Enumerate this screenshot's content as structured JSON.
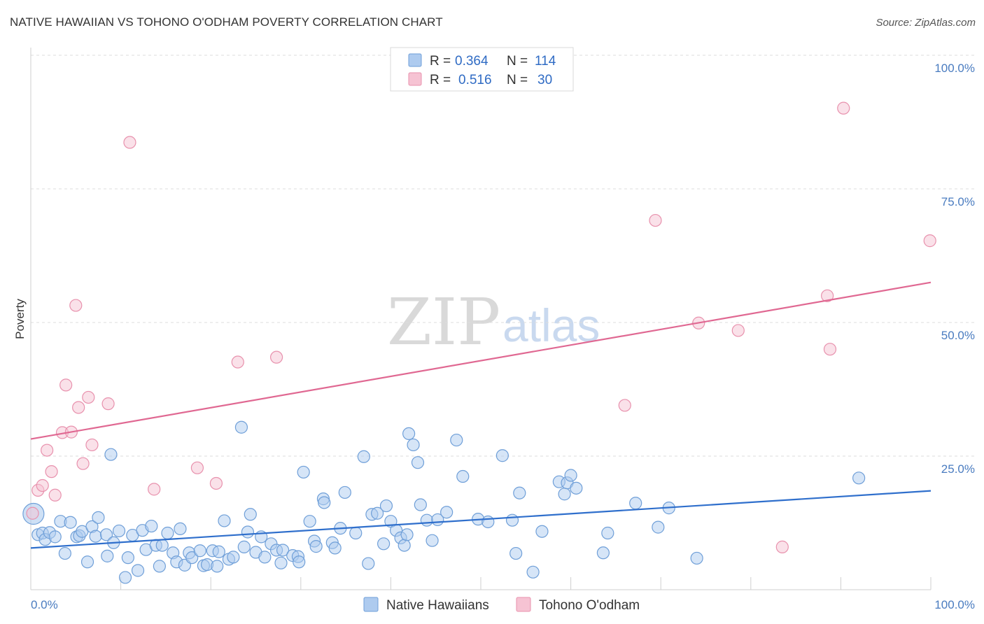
{
  "title": "NATIVE HAWAIIAN VS TOHONO O'ODHAM POVERTY CORRELATION CHART",
  "source": "Source: ZipAtlas.com",
  "watermark": {
    "zip": "ZIP",
    "atlas": "atlas"
  },
  "colors": {
    "blue_fill": "#aecbef",
    "blue_stroke": "#6f9fd8",
    "blue_line": "#2f6fcc",
    "pink_fill": "#f6c3d3",
    "pink_stroke": "#e891ad",
    "pink_line": "#e06892",
    "grid": "#dddddd",
    "tick_text": "#4a7cc0"
  },
  "legend": {
    "rows": [
      {
        "r_label": "R =",
        "r_value": "0.364",
        "n_label": "N =",
        "n_value": "114"
      },
      {
        "r_label": "R =",
        "r_value": "0.516",
        "n_label": "N =",
        "n_value": "30"
      }
    ]
  },
  "chart_data": {
    "type": "scatter",
    "title": "NATIVE HAWAIIAN VS TOHONO O'ODHAM POVERTY CORRELATION CHART",
    "xlabel": "",
    "ylabel": "Poverty",
    "xlim": [
      0,
      100
    ],
    "ylim": [
      0,
      100
    ],
    "x_tick_labels": [
      "0.0%",
      "100.0%"
    ],
    "y_ticks": [
      25,
      50,
      75,
      100
    ],
    "y_tick_labels": [
      "25.0%",
      "50.0%",
      "75.0%",
      "100.0%"
    ],
    "grid": true,
    "legend_position": "top-center",
    "series": [
      {
        "name": "Native Hawaiians",
        "color": "#aecbef",
        "trend": {
          "x": [
            0,
            100
          ],
          "y": [
            7.8,
            18.5
          ]
        },
        "points": [
          [
            0.3,
            14.2
          ],
          [
            0.8,
            10.3
          ],
          [
            1.3,
            10.6
          ],
          [
            1.6,
            9.4
          ],
          [
            2.1,
            10.7
          ],
          [
            2.7,
            9.9
          ],
          [
            3.3,
            12.8
          ],
          [
            3.8,
            6.8
          ],
          [
            4.4,
            12.6
          ],
          [
            5.1,
            9.9
          ],
          [
            5.4,
            10.1
          ],
          [
            5.7,
            10.9
          ],
          [
            6.3,
            5.2
          ],
          [
            6.8,
            11.8
          ],
          [
            7.2,
            10.0
          ],
          [
            7.5,
            13.5
          ],
          [
            8.4,
            10.3
          ],
          [
            8.5,
            6.3
          ],
          [
            8.9,
            25.3
          ],
          [
            9.2,
            8.8
          ],
          [
            9.8,
            11.0
          ],
          [
            10.5,
            2.3
          ],
          [
            10.8,
            6.0
          ],
          [
            11.3,
            10.2
          ],
          [
            11.9,
            3.6
          ],
          [
            12.4,
            11.1
          ],
          [
            12.8,
            7.5
          ],
          [
            13.4,
            11.9
          ],
          [
            13.9,
            8.3
          ],
          [
            14.3,
            4.4
          ],
          [
            14.6,
            8.3
          ],
          [
            15.2,
            10.6
          ],
          [
            15.8,
            6.9
          ],
          [
            16.2,
            5.2
          ],
          [
            16.6,
            11.4
          ],
          [
            17.1,
            4.6
          ],
          [
            17.6,
            6.9
          ],
          [
            17.9,
            6.0
          ],
          [
            18.8,
            7.3
          ],
          [
            19.2,
            4.5
          ],
          [
            19.6,
            4.7
          ],
          [
            20.2,
            7.3
          ],
          [
            20.7,
            4.4
          ],
          [
            20.9,
            7.1
          ],
          [
            21.5,
            12.9
          ],
          [
            22.0,
            5.7
          ],
          [
            22.5,
            6.1
          ],
          [
            23.4,
            30.4
          ],
          [
            23.7,
            8.0
          ],
          [
            24.1,
            10.8
          ],
          [
            24.4,
            14.1
          ],
          [
            25.0,
            7.0
          ],
          [
            25.6,
            9.9
          ],
          [
            26.0,
            6.1
          ],
          [
            26.7,
            8.6
          ],
          [
            27.3,
            7.4
          ],
          [
            27.8,
            5.0
          ],
          [
            28.0,
            7.4
          ],
          [
            29.1,
            6.4
          ],
          [
            29.7,
            6.2
          ],
          [
            29.8,
            5.2
          ],
          [
            30.3,
            22.0
          ],
          [
            31.0,
            12.8
          ],
          [
            31.5,
            9.1
          ],
          [
            31.7,
            8.1
          ],
          [
            32.5,
            17.0
          ],
          [
            32.6,
            16.3
          ],
          [
            33.5,
            8.8
          ],
          [
            33.8,
            7.8
          ],
          [
            34.4,
            11.5
          ],
          [
            34.9,
            18.2
          ],
          [
            36.1,
            10.6
          ],
          [
            37.0,
            24.9
          ],
          [
            37.5,
            4.9
          ],
          [
            37.9,
            14.1
          ],
          [
            38.5,
            14.3
          ],
          [
            39.2,
            8.6
          ],
          [
            39.5,
            15.7
          ],
          [
            40.0,
            12.8
          ],
          [
            40.6,
            11.1
          ],
          [
            41.1,
            9.7
          ],
          [
            41.5,
            8.3
          ],
          [
            41.8,
            10.3
          ],
          [
            42.0,
            29.2
          ],
          [
            42.5,
            27.1
          ],
          [
            43.0,
            23.8
          ],
          [
            43.3,
            15.9
          ],
          [
            44.0,
            13.0
          ],
          [
            44.6,
            9.2
          ],
          [
            45.2,
            13.1
          ],
          [
            46.2,
            14.5
          ],
          [
            47.3,
            28.0
          ],
          [
            48.0,
            21.2
          ],
          [
            49.7,
            13.2
          ],
          [
            50.8,
            12.7
          ],
          [
            52.4,
            25.1
          ],
          [
            53.5,
            13.0
          ],
          [
            53.9,
            6.8
          ],
          [
            54.3,
            18.1
          ],
          [
            55.8,
            3.3
          ],
          [
            56.8,
            10.9
          ],
          [
            58.7,
            20.2
          ],
          [
            59.3,
            17.9
          ],
          [
            59.6,
            20.0
          ],
          [
            60.0,
            21.4
          ],
          [
            60.6,
            19.0
          ],
          [
            63.6,
            6.9
          ],
          [
            64.1,
            10.6
          ],
          [
            67.2,
            16.2
          ],
          [
            69.7,
            11.7
          ],
          [
            70.9,
            15.3
          ],
          [
            74.0,
            5.9
          ],
          [
            92.0,
            20.9
          ]
        ]
      },
      {
        "name": "Tohono O'odham",
        "color": "#f6c3d3",
        "trend": {
          "x": [
            0,
            100
          ],
          "y": [
            28.2,
            57.5
          ]
        },
        "points": [
          [
            0.2,
            14.3
          ],
          [
            0.8,
            18.6
          ],
          [
            1.3,
            19.5
          ],
          [
            1.8,
            26.1
          ],
          [
            2.3,
            22.1
          ],
          [
            2.7,
            17.7
          ],
          [
            3.5,
            29.4
          ],
          [
            3.9,
            38.3
          ],
          [
            4.5,
            29.5
          ],
          [
            5.0,
            53.2
          ],
          [
            5.3,
            34.1
          ],
          [
            5.8,
            23.6
          ],
          [
            6.4,
            36.0
          ],
          [
            6.8,
            27.1
          ],
          [
            8.6,
            34.8
          ],
          [
            11.0,
            83.7
          ],
          [
            13.7,
            18.8
          ],
          [
            18.5,
            22.8
          ],
          [
            20.6,
            19.9
          ],
          [
            23.0,
            42.6
          ],
          [
            27.3,
            43.5
          ],
          [
            66.0,
            34.5
          ],
          [
            69.4,
            69.1
          ],
          [
            74.2,
            49.9
          ],
          [
            78.6,
            48.5
          ],
          [
            83.5,
            8.0
          ],
          [
            88.5,
            55.0
          ],
          [
            88.8,
            45.0
          ],
          [
            90.3,
            90.1
          ],
          [
            99.9,
            65.3
          ]
        ]
      }
    ]
  }
}
